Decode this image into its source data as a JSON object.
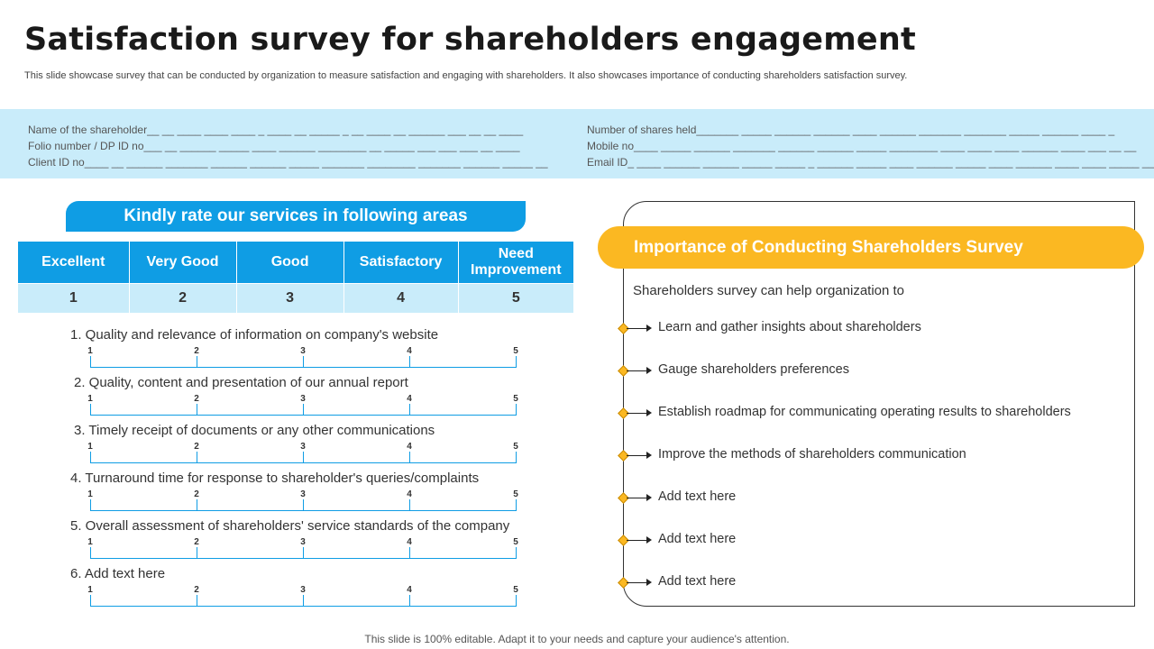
{
  "title": "Satisfaction survey for shareholders engagement",
  "subtitle": "This slide showcase survey that can be conducted by organization to measure satisfaction and engaging with shareholders. It also showcases importance of conducting shareholders satisfaction survey.",
  "info": {
    "left": [
      "Name of the shareholder__ __ ____ ____ ____ _ ____ __ _____ _ __ ____ __ ______ ___ __ __ ____",
      "Folio number / DP ID no___ __ ______ _____ ____ ______ ________ __ _____ ___ ___ ___ __ ____",
      "Client ID no____ __ ______ _______ ______ ______ _____ _______ ________ _______ ______ _____ __"
    ],
    "right": [
      "Number of shares held_______ _____ ______ ______ ____ ______ _______ _______ _____ ______ ____ _",
      "Mobile no____ _____ ______ _______ ______ ______ _____ ________ ____ ____ ____ ______ ____ ___ __ __",
      "Email ID_ ____ ______ ______ _____ _____ _ ______ _____ ____ ______ _____ ____ ______ ____ ____ _____ __"
    ]
  },
  "rating": {
    "banner": "Kindly rate our services in following areas",
    "headers": [
      "Excellent",
      "Very Good",
      "Good",
      "Satisfactory",
      "Need Improvement"
    ],
    "numbers": [
      "1",
      "2",
      "3",
      "4",
      "5"
    ]
  },
  "questions": [
    "1. Quality and relevance of information on company's website",
    "2. Quality,  content and presentation of our annual report",
    "3. Timely receipt of documents or any other communications",
    "4. Turnaround  time for response to shareholder's queries/complaints",
    "5. Overall assessment of shareholders' service standards of the company",
    "6. Add text here"
  ],
  "scale_labels": [
    "1",
    "2",
    "3",
    "4",
    "5"
  ],
  "importance": {
    "title": "Importance of Conducting Shareholders Survey",
    "intro": "Shareholders survey  can help organization to",
    "items": [
      "Learn and gather insights about shareholders",
      "Gauge shareholders preferences",
      "Establish roadmap for communicating operating results to shareholders",
      "Improve the methods of shareholders communication",
      "Add text here",
      "Add text here",
      "Add text here"
    ],
    "accent": "#fbb822"
  },
  "footer": "This slide is 100% editable. Adapt it to your needs and capture your audience's attention."
}
